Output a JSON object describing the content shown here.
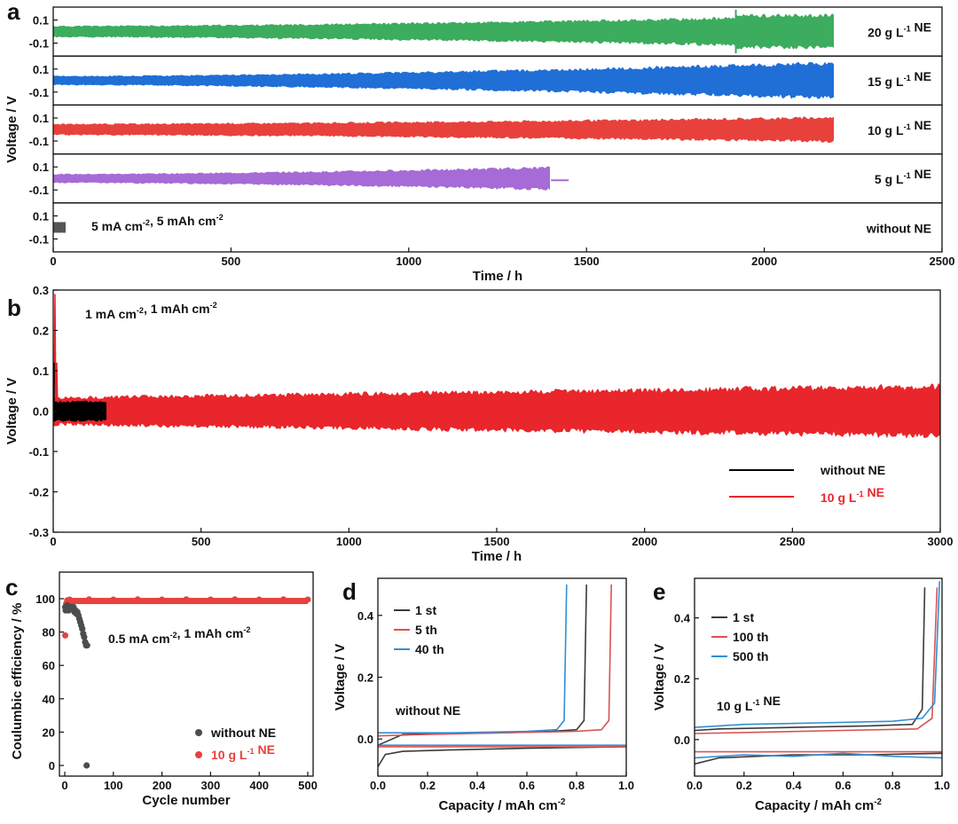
{
  "chart_data": [
    {
      "id": "a",
      "panel_label": "a",
      "type": "line",
      "xlabel": "Time / h",
      "ylabel": "Voltage / V",
      "xlim": [
        0,
        2500
      ],
      "xticks": [
        "0",
        "500",
        "1000",
        "1500",
        "2000",
        "2500"
      ],
      "annotation": "5 mA cm⁻², 5 mAh cm⁻²",
      "series": [
        {
          "name": "20 g L⁻¹ NE",
          "color": "#3cac5e",
          "end_time": 2200,
          "amplitude_start": 0.05,
          "amplitude_end": 0.14,
          "step_at": 1920,
          "yticks": [
            "0.1",
            "-0.1"
          ]
        },
        {
          "name": "15 g L⁻¹ NE",
          "color": "#1f6fd6",
          "end_time": 2200,
          "amplitude_start": 0.04,
          "amplitude_end": 0.16,
          "yticks": [
            "0.1",
            "-0.1"
          ]
        },
        {
          "name": "10 g L⁻¹ NE",
          "color": "#e8413c",
          "end_time": 2200,
          "amplitude_start": 0.05,
          "amplitude_end": 0.11,
          "yticks": [
            "0.1",
            "-0.1"
          ]
        },
        {
          "name": "5 g L⁻¹ NE",
          "color": "#a66bd6",
          "end_time": 1400,
          "tail_end": 1450,
          "amplitude_start": 0.04,
          "amplitude_end": 0.1,
          "yticks": [
            "0.1",
            "-0.1"
          ]
        },
        {
          "name": "without NE",
          "color": "#555555",
          "end_time": 35,
          "amplitude_start": 0.04,
          "amplitude_end": 0.04,
          "yticks": [
            "0.1",
            "-0.1"
          ]
        }
      ]
    },
    {
      "id": "b",
      "panel_label": "b",
      "type": "line",
      "xlabel": "Time / h",
      "ylabel": "Voltage / V",
      "xlim": [
        0,
        3000
      ],
      "ylim": [
        -0.3,
        0.3
      ],
      "xticks": [
        "0",
        "500",
        "1000",
        "1500",
        "2000",
        "2500",
        "3000"
      ],
      "yticks": [
        "0.3",
        "0.2",
        "0.1",
        "0.0",
        "-0.1",
        "-0.2",
        "-0.3"
      ],
      "annotation": "1 mA cm⁻², 1 mAh cm⁻²",
      "series": [
        {
          "name": "without NE",
          "color": "#000000",
          "end_time": 180,
          "amplitude": 0.025
        },
        {
          "name": "10 g L⁻¹ NE",
          "color": "#e8262b",
          "end_time": 3000,
          "amplitude_start": 0.035,
          "amplitude_end": 0.065
        }
      ]
    },
    {
      "id": "c",
      "panel_label": "c",
      "type": "scatter",
      "xlabel": "Cycle number",
      "ylabel": "Coulumbic efficiency / %",
      "xlim": [
        0,
        500
      ],
      "ylim": [
        0,
        100
      ],
      "xticks": [
        "0",
        "100",
        "200",
        "300",
        "400",
        "500"
      ],
      "yticks": [
        "100",
        "80",
        "60",
        "40",
        "20",
        "0"
      ],
      "annotation": "0.5 mA cm⁻², 1 mAh cm⁻²",
      "series": [
        {
          "name": "without NE",
          "color": "#4d4d4d",
          "points": [
            [
              1,
              95
            ],
            [
              2,
              93
            ],
            [
              3,
              94
            ],
            [
              4,
              95
            ],
            [
              5,
              96
            ],
            [
              6,
              94
            ],
            [
              7,
              95
            ],
            [
              8,
              93
            ],
            [
              10,
              95
            ],
            [
              12,
              94
            ],
            [
              14,
              95
            ],
            [
              16,
              94
            ],
            [
              18,
              95
            ],
            [
              20,
              92
            ],
            [
              22,
              93
            ],
            [
              24,
              91
            ],
            [
              26,
              92
            ],
            [
              28,
              90
            ],
            [
              30,
              88
            ],
            [
              32,
              86
            ],
            [
              34,
              84
            ],
            [
              36,
              82
            ],
            [
              38,
              79
            ],
            [
              40,
              77
            ],
            [
              42,
              74
            ],
            [
              44,
              72
            ],
            [
              46,
              72
            ],
            [
              45,
              0
            ]
          ]
        },
        {
          "name": "10 g L⁻¹ NE",
          "color": "#e8413c",
          "points": [
            [
              1,
              78
            ],
            [
              3,
              97
            ],
            [
              5,
              99
            ],
            [
              10,
              99.5
            ],
            [
              50,
              99.6
            ],
            [
              100,
              99.5
            ],
            [
              150,
              99.6
            ],
            [
              200,
              99.5
            ],
            [
              250,
              99.6
            ],
            [
              300,
              99.5
            ],
            [
              350,
              99.6
            ],
            [
              400,
              99.5
            ],
            [
              450,
              99.6
            ],
            [
              500,
              99.5
            ]
          ]
        }
      ]
    },
    {
      "id": "d",
      "panel_label": "d",
      "type": "line",
      "xlabel": "Capacity / mAh cm⁻²",
      "ylabel": "Voltage / V",
      "xlim": [
        0,
        1.0
      ],
      "ylim": [
        -0.12,
        0.52
      ],
      "xticks": [
        "0.0",
        "0.2",
        "0.4",
        "0.6",
        "0.8",
        "1.0"
      ],
      "yticks": [
        "0.4",
        "0.2",
        "0.0"
      ],
      "annotation": "without NE",
      "series": [
        {
          "name": "1 st",
          "color": "#3a3a3a",
          "points": [
            [
              0,
              -0.02
            ],
            [
              0.1,
              0.015
            ],
            [
              0.3,
              0.018
            ],
            [
              0.5,
              0.02
            ],
            [
              0.7,
              0.025
            ],
            [
              0.8,
              0.03
            ],
            [
              0.83,
              0.06
            ],
            [
              0.84,
              0.5
            ]
          ],
          "strip_points": [
            [
              0,
              -0.09
            ],
            [
              0.03,
              -0.05
            ],
            [
              0.1,
              -0.04
            ],
            [
              0.3,
              -0.035
            ],
            [
              0.6,
              -0.03
            ],
            [
              1.0,
              -0.025
            ]
          ]
        },
        {
          "name": "5 th",
          "color": "#d9534f",
          "points": [
            [
              0,
              0.01
            ],
            [
              0.2,
              0.015
            ],
            [
              0.5,
              0.02
            ],
            [
              0.8,
              0.025
            ],
            [
              0.9,
              0.03
            ],
            [
              0.93,
              0.06
            ],
            [
              0.94,
              0.5
            ]
          ],
          "strip_points": [
            [
              0,
              -0.025
            ],
            [
              0.5,
              -0.025
            ],
            [
              1.0,
              -0.025
            ]
          ]
        },
        {
          "name": "40 th",
          "color": "#2f8fd6",
          "points": [
            [
              0,
              0.02
            ],
            [
              0.3,
              0.02
            ],
            [
              0.6,
              0.025
            ],
            [
              0.72,
              0.03
            ],
            [
              0.75,
              0.06
            ],
            [
              0.76,
              0.5
            ]
          ],
          "strip_points": [
            [
              0,
              -0.02
            ],
            [
              0.5,
              -0.02
            ],
            [
              1.0,
              -0.02
            ]
          ]
        }
      ]
    },
    {
      "id": "e",
      "panel_label": "e",
      "type": "line",
      "xlabel": "Capacity / mAh cm⁻²",
      "ylabel": "Voltage / V",
      "xlim": [
        0,
        1.0
      ],
      "ylim": [
        -0.12,
        0.53
      ],
      "xticks": [
        "0.0",
        "0.2",
        "0.4",
        "0.6",
        "0.8",
        "1.0"
      ],
      "yticks": [
        "0.4",
        "0.2",
        "0.0"
      ],
      "annotation": "10 g L⁻¹ NE",
      "series": [
        {
          "name": "1 st",
          "color": "#3a3a3a",
          "points": [
            [
              0,
              0.03
            ],
            [
              0.1,
              0.035
            ],
            [
              0.4,
              0.04
            ],
            [
              0.7,
              0.045
            ],
            [
              0.88,
              0.05
            ],
            [
              0.92,
              0.1
            ],
            [
              0.93,
              0.5
            ]
          ],
          "strip_points": [
            [
              0,
              -0.08
            ],
            [
              0.1,
              -0.06
            ],
            [
              0.4,
              -0.05
            ],
            [
              0.7,
              -0.05
            ],
            [
              1.0,
              -0.045
            ]
          ]
        },
        {
          "name": "100 th",
          "color": "#d9534f",
          "points": [
            [
              0,
              0.02
            ],
            [
              0.3,
              0.025
            ],
            [
              0.6,
              0.03
            ],
            [
              0.9,
              0.035
            ],
            [
              0.96,
              0.07
            ],
            [
              0.98,
              0.5
            ]
          ],
          "strip_points": [
            [
              0,
              -0.04
            ],
            [
              0.5,
              -0.04
            ],
            [
              1.0,
              -0.04
            ]
          ]
        },
        {
          "name": "500 th",
          "color": "#2f8fd6",
          "points": [
            [
              0,
              0.04
            ],
            [
              0.2,
              0.05
            ],
            [
              0.5,
              0.055
            ],
            [
              0.8,
              0.06
            ],
            [
              0.92,
              0.07
            ],
            [
              0.97,
              0.12
            ],
            [
              0.99,
              0.52
            ]
          ],
          "strip_points": [
            [
              0,
              -0.06
            ],
            [
              0.2,
              -0.05
            ],
            [
              0.4,
              -0.055
            ],
            [
              0.6,
              -0.045
            ],
            [
              0.8,
              -0.055
            ],
            [
              1.0,
              -0.06
            ]
          ]
        }
      ]
    }
  ]
}
